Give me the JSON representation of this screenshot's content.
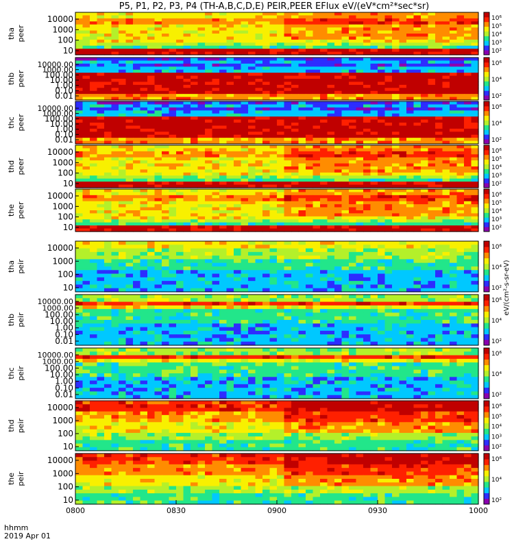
{
  "title": "P5, P1, P2, P3, P4 (TH-A,B,C,D,E) PEIR,PEER EFlux eV/(eV*cm²*sec*sr)",
  "time_axis": {
    "label_top": "hhmm",
    "label_bottom": "2019 Apr 01",
    "ticks": [
      "0800",
      "0830",
      "0900",
      "0930",
      "1000"
    ],
    "range": [
      "08:00",
      "10:00"
    ]
  },
  "colorbar_label": "eV/(cm²-s-sr-eV)",
  "chart_data": {
    "type": "heatmap",
    "colormap": [
      "#8a00b0",
      "#2d2dff",
      "#00c8ff",
      "#22e68a",
      "#b4f02a",
      "#f8f000",
      "#ff8c00",
      "#ff2000",
      "#c00000"
    ],
    "panels": [
      {
        "probe": "tha",
        "species": "peer",
        "ylabels": [
          "10000",
          "1000",
          "100",
          "10"
        ],
        "cbar": [
          "10⁶",
          "10⁵",
          "10⁴",
          "10³",
          "10²"
        ],
        "style": "electron"
      },
      {
        "probe": "thb",
        "species": "peer",
        "ylabels": [
          "10000.00",
          "1000.00",
          "100.00",
          "10.00",
          "1.00",
          "0.10",
          "0.01"
        ],
        "cbar": [
          "10⁶",
          "10⁴",
          "10²"
        ],
        "style": "banded"
      },
      {
        "probe": "thc",
        "species": "peer",
        "ylabels": [
          "10000.00",
          "1000.00",
          "100.00",
          "10.00",
          "1.00",
          "0.10",
          "0.01"
        ],
        "cbar": [
          "10⁶",
          "10⁴",
          "10²"
        ],
        "style": "banded"
      },
      {
        "probe": "thd",
        "species": "peer",
        "ylabels": [
          "10000",
          "1000",
          "100",
          "10"
        ],
        "cbar": [
          "10⁶",
          "10⁵",
          "10⁴",
          "10³",
          "10²"
        ],
        "style": "electron"
      },
      {
        "probe": "the",
        "species": "peer",
        "ylabels": [
          "10000",
          "1000",
          "100",
          "10"
        ],
        "cbar": [
          "10⁶",
          "10⁵",
          "10⁴",
          "10³",
          "10²"
        ],
        "style": "electron"
      },
      {
        "probe": "tha",
        "species": "peir",
        "ylabels": [
          "10000",
          "1000",
          "100",
          "10"
        ],
        "cbar": [
          "10⁶",
          "10⁴",
          "10²"
        ],
        "style": "ion"
      },
      {
        "probe": "thb",
        "species": "peir",
        "ylabels": [
          "10000.00",
          "1000.00",
          "100.00",
          "10.00",
          "1.00",
          "0.10",
          "0.01"
        ],
        "cbar": [
          "10⁶",
          "10⁴",
          "10²"
        ],
        "style": "ionband"
      },
      {
        "probe": "thc",
        "species": "peir",
        "ylabels": [
          "10000.00",
          "1000.00",
          "100.00",
          "10.00",
          "1.00",
          "0.10",
          "0.01"
        ],
        "cbar": [
          "10⁶",
          "10⁴",
          "10²"
        ],
        "style": "ionband"
      },
      {
        "probe": "thd",
        "species": "peir",
        "ylabels": [
          "10000",
          "1000",
          "100",
          "10"
        ],
        "cbar": [
          "10⁶",
          "10⁵",
          "10⁴",
          "10³",
          "10²"
        ],
        "style": "ionhot"
      },
      {
        "probe": "the",
        "species": "peir",
        "ylabels": [
          "10000",
          "1000",
          "100",
          "10"
        ],
        "cbar": [
          "10⁶",
          "10⁴",
          "10²"
        ],
        "style": "ionhot"
      }
    ]
  }
}
